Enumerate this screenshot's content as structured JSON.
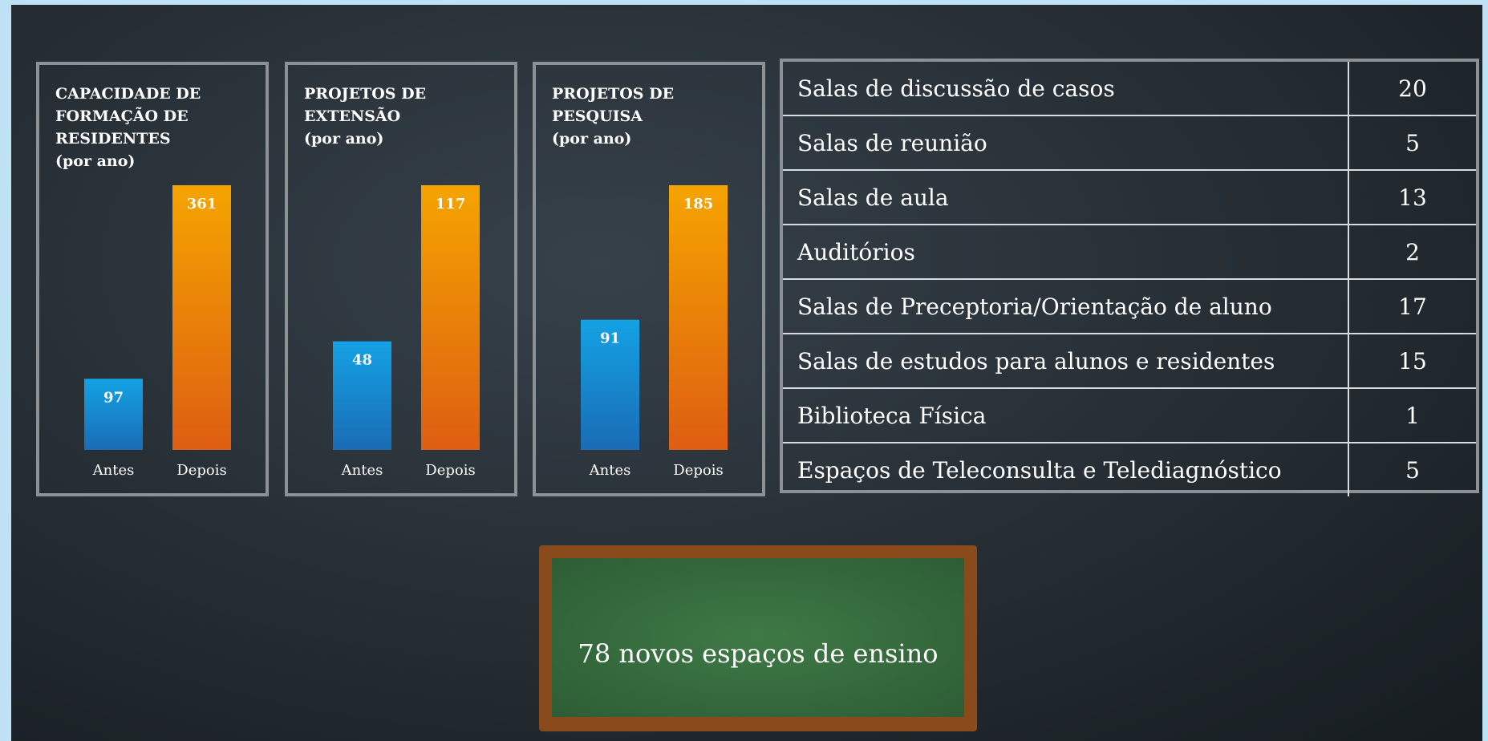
{
  "chart_data": [
    {
      "type": "bar",
      "title": "CAPACIDADE DE FORMAÇÃO DE RESIDENTES",
      "subtitle": "(por ano)",
      "categories": [
        "Antes",
        "Depois"
      ],
      "values": [
        97,
        361
      ],
      "colors": [
        "#14a2e4",
        "#f5a400"
      ]
    },
    {
      "type": "bar",
      "title": "PROJETOS DE EXTENSÃO",
      "subtitle": "(por ano)",
      "categories": [
        "Antes",
        "Depois"
      ],
      "values": [
        48,
        117
      ],
      "colors": [
        "#14a2e4",
        "#f5a400"
      ]
    },
    {
      "type": "bar",
      "title": "PROJETOS DE PESQUISA",
      "subtitle": "(por ano)",
      "categories": [
        "Antes",
        "Depois"
      ],
      "values": [
        91,
        185
      ],
      "colors": [
        "#14a2e4",
        "#f5a400"
      ]
    }
  ],
  "table": {
    "rows": [
      [
        "Salas de discussão de casos",
        20
      ],
      [
        "Salas de reunião",
        5
      ],
      [
        "Salas de aula",
        13
      ],
      [
        "Auditórios",
        2
      ],
      [
        "Salas de Preceptoria/Orientação de aluno",
        17
      ],
      [
        "Salas de estudos para alunos e residentes",
        15
      ],
      [
        "Biblioteca Física",
        1
      ],
      [
        "Espaços de Teleconsulta e Telediagnóstico",
        5
      ]
    ]
  },
  "chalkboard": {
    "text": "78 novos espaços de ensino"
  }
}
